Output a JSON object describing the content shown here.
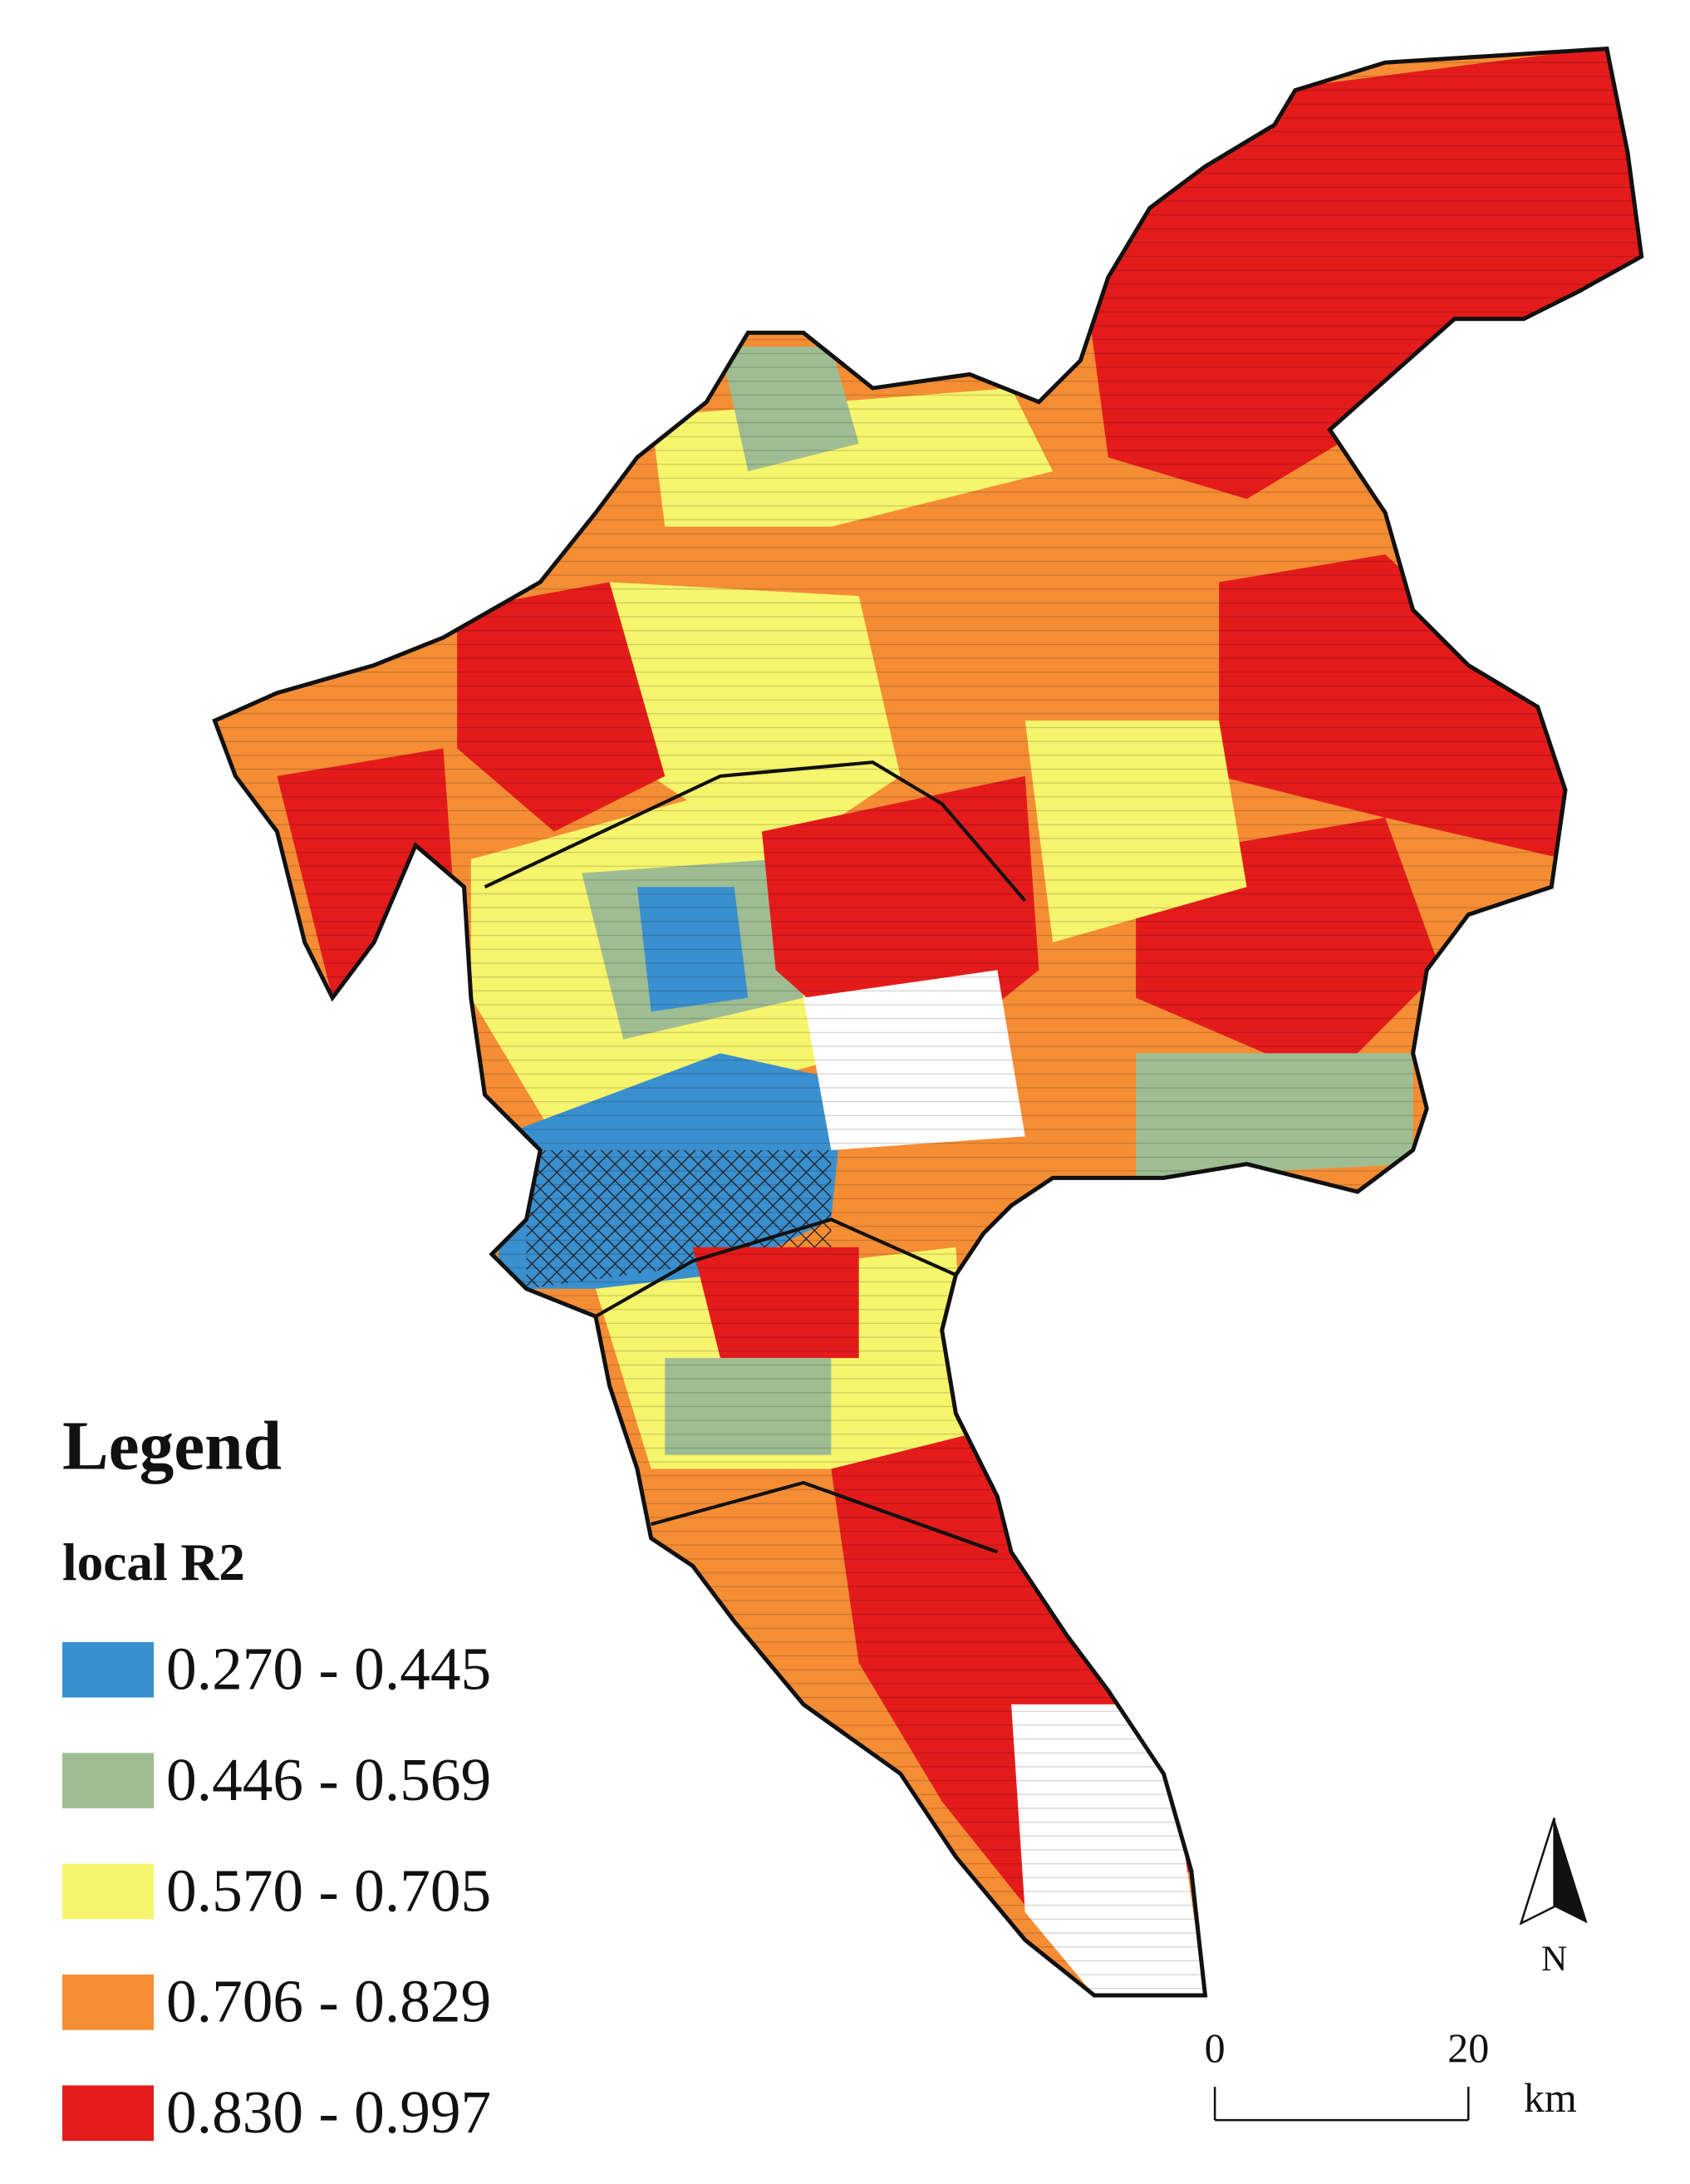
{
  "legend": {
    "title": "Legend",
    "subtitle": "local R2",
    "classes": [
      {
        "label": "0.270 - 0.445",
        "color": "#3a8fcf"
      },
      {
        "label": "0.446 - 0.569",
        "color": "#9fbd93"
      },
      {
        "label": "0.570 - 0.705",
        "color": "#f7f56c"
      },
      {
        "label": "0.706 - 0.829",
        "color": "#f58d35"
      },
      {
        "label": "0.830 - 0.997",
        "color": "#e41b1b"
      }
    ]
  },
  "scale_bar": {
    "ticks": [
      0,
      20
    ],
    "unit": "km"
  },
  "north_arrow": {
    "label": "N"
  }
}
